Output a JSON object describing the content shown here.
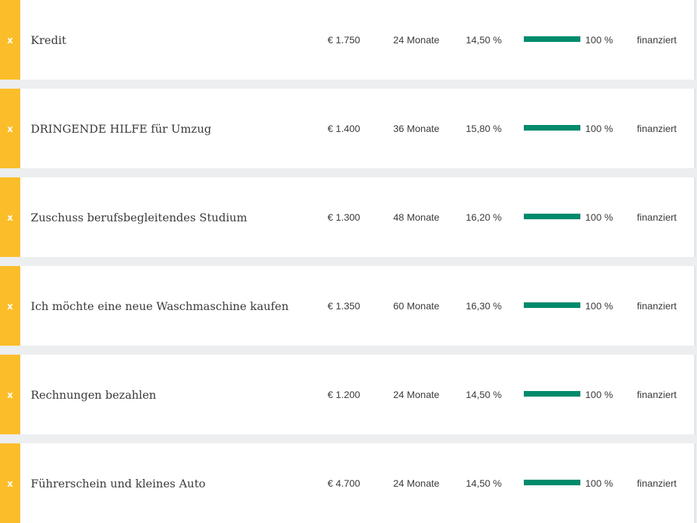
{
  "loans": [
    {
      "badge": "x",
      "title": "Kredit",
      "amount": "€ 1.750",
      "term": "24 Monate",
      "rate": "14,50 %",
      "funded_fraction": 1.0,
      "funded_label": "100 %",
      "status": "finanziert"
    },
    {
      "badge": "x",
      "title": "DRINGENDE HILFE für Umzug",
      "amount": "€ 1.400",
      "term": "36 Monate",
      "rate": "15,80 %",
      "funded_fraction": 1.0,
      "funded_label": "100 %",
      "status": "finanziert"
    },
    {
      "badge": "x",
      "title": "Zuschuss berufsbegleitendes Studium",
      "amount": "€ 1.300",
      "term": "48 Monate",
      "rate": "16,20 %",
      "funded_fraction": 1.0,
      "funded_label": "100 %",
      "status": "finanziert"
    },
    {
      "badge": "x",
      "title": "Ich möchte eine neue Waschmaschine kaufen",
      "amount": "€ 1.350",
      "term": "60 Monate",
      "rate": "16,30 %",
      "funded_fraction": 1.0,
      "funded_label": "100 %",
      "status": "finanziert"
    },
    {
      "badge": "x",
      "title": "Rechnungen bezahlen",
      "amount": "€ 1.200",
      "term": "24 Monate",
      "rate": "14,50 %",
      "funded_fraction": 1.0,
      "funded_label": "100 %",
      "status": "finanziert"
    },
    {
      "badge": "x",
      "title": "Führerschein und kleines Auto",
      "amount": "€ 4.700",
      "term": "24 Monate",
      "rate": "14,50 %",
      "funded_fraction": 1.0,
      "funded_label": "100 %",
      "status": "finanziert"
    }
  ],
  "colors": {
    "badge": "#fbbd29",
    "progress": "#008a6c",
    "separator": "#eceeef"
  }
}
